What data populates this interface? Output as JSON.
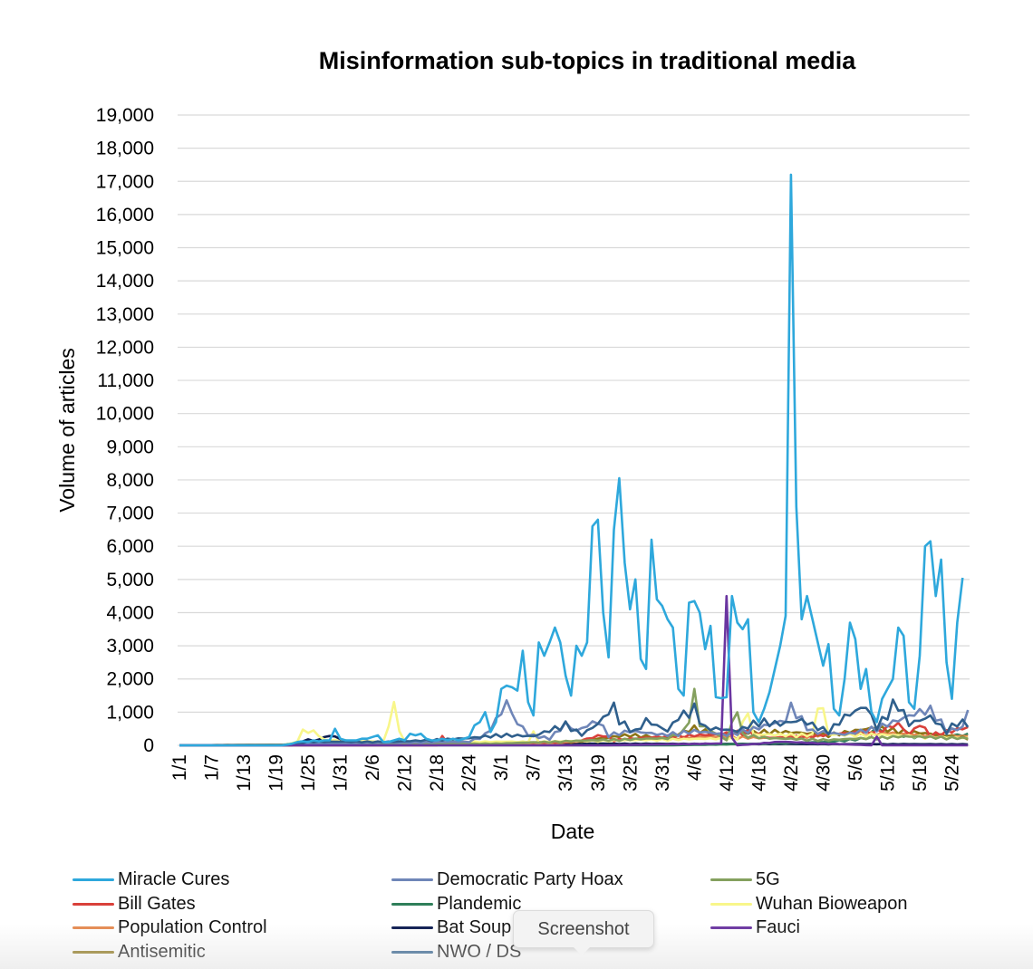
{
  "chart_data": {
    "type": "line",
    "title": "Misinformation sub-topics in traditional media",
    "xlabel": "Date",
    "ylabel": "Volume of articles",
    "ylim": [
      0,
      19000
    ],
    "yticks": [
      "0",
      "1,000",
      "2,000",
      "3,000",
      "4,000",
      "5,000",
      "6,000",
      "7,000",
      "8,000",
      "9,000",
      "10,000",
      "11,000",
      "12,000",
      "13,000",
      "14,000",
      "15,000",
      "16,000",
      "17,000",
      "18,000",
      "19,000"
    ],
    "x_start": "1/1",
    "x_end": "5/27",
    "xticks": [
      "1/1",
      "1/7",
      "1/13",
      "1/19",
      "1/25",
      "1/31",
      "2/6",
      "2/12",
      "2/18",
      "2/24",
      "3/1",
      "3/7",
      "3/13",
      "3/19",
      "3/25",
      "3/31",
      "4/6",
      "4/12",
      "4/18",
      "4/24",
      "4/30",
      "5/6",
      "5/12",
      "5/18",
      "5/24"
    ],
    "grid": true,
    "legend_position": "bottom",
    "series": [
      {
        "name": "Miracle Cures",
        "color": "#2ea8dc",
        "values": [
          0,
          0,
          0,
          0,
          0,
          0,
          0,
          0,
          0,
          0,
          0,
          0,
          0,
          0,
          0,
          0,
          0,
          0,
          0,
          0,
          20,
          50,
          100,
          120,
          100,
          150,
          120,
          150,
          150,
          500,
          200,
          150,
          150,
          150,
          200,
          200,
          250,
          300,
          100,
          100,
          150,
          200,
          150,
          350,
          300,
          350,
          200,
          150,
          150,
          200,
          150,
          200,
          150,
          200,
          250,
          600,
          700,
          1000,
          400,
          700,
          1700,
          1800,
          1750,
          1650,
          2850,
          1300,
          900,
          3100,
          2700,
          3100,
          3550,
          3100,
          2100,
          1500,
          3000,
          2700,
          3100,
          6600,
          6800,
          4000,
          2650,
          6500,
          8050,
          5500,
          4100,
          5000,
          2600,
          2300,
          6200,
          4400,
          4200,
          3800,
          3550,
          1700,
          1500,
          4300,
          4350,
          4000,
          2900,
          3600,
          1450,
          1420,
          1450,
          4500,
          3700,
          3500,
          3800,
          1000,
          700,
          1100,
          1600,
          2300,
          3000,
          3900,
          17200,
          7200,
          3800,
          4500,
          3800,
          3100,
          2400,
          3050,
          1100,
          900,
          2000,
          3700,
          3200,
          1700,
          2300,
          1000,
          700,
          1400,
          1700,
          2000,
          3550,
          3300,
          1300,
          1100,
          2700,
          6000,
          6150,
          4500,
          5600,
          2500,
          1400,
          3700,
          5050
        ]
      },
      {
        "name": "Democratic Party Hoax",
        "color": "#6f86b8",
        "points": [
          [
            "1/1",
            0
          ],
          [
            "1/20",
            0
          ],
          [
            "1/25",
            50
          ],
          [
            "2/24",
            100
          ],
          [
            "2/27",
            300
          ],
          [
            "2/29",
            700
          ],
          [
            "3/2",
            1200
          ],
          [
            "3/4",
            600
          ],
          [
            "3/5",
            500
          ],
          [
            "3/6",
            300
          ],
          [
            "3/10",
            200
          ],
          [
            "3/13",
            600
          ],
          [
            "3/15",
            400
          ],
          [
            "3/19",
            700
          ],
          [
            "3/21",
            300
          ],
          [
            "3/25",
            400
          ],
          [
            "3/31",
            300
          ],
          [
            "4/6",
            400
          ],
          [
            "4/12",
            300
          ],
          [
            "4/18",
            500
          ],
          [
            "4/23",
            700
          ],
          [
            "4/24",
            1100
          ],
          [
            "4/25",
            900
          ],
          [
            "4/28",
            400
          ],
          [
            "5/4",
            300
          ],
          [
            "5/10",
            500
          ],
          [
            "5/14",
            700
          ],
          [
            "5/19",
            1000
          ],
          [
            "5/20",
            1000
          ],
          [
            "5/21",
            900
          ],
          [
            "5/23",
            400
          ],
          [
            "5/26",
            500
          ],
          [
            "5/27",
            1000
          ]
        ]
      },
      {
        "name": "5G",
        "color": "#84a05e",
        "points": [
          [
            "1/1",
            0
          ],
          [
            "3/1",
            50
          ],
          [
            "3/20",
            150
          ],
          [
            "4/1",
            200
          ],
          [
            "4/4",
            400
          ],
          [
            "4/5",
            800
          ],
          [
            "4/6",
            1700
          ],
          [
            "4/7",
            600
          ],
          [
            "4/8",
            500
          ],
          [
            "4/12",
            150
          ],
          [
            "4/13",
            600
          ],
          [
            "4/14",
            1100
          ],
          [
            "4/15",
            300
          ],
          [
            "4/20",
            200
          ],
          [
            "5/1",
            150
          ],
          [
            "5/15",
            250
          ],
          [
            "5/27",
            200
          ]
        ]
      },
      {
        "name": "Bill Gates",
        "color": "#d9403a",
        "points": [
          [
            "1/1",
            0
          ],
          [
            "2/18",
            0
          ],
          [
            "2/19",
            250
          ],
          [
            "2/20",
            50
          ],
          [
            "3/15",
            100
          ],
          [
            "3/20",
            300
          ],
          [
            "3/22",
            150
          ],
          [
            "4/1",
            250
          ],
          [
            "4/10",
            300
          ],
          [
            "4/16",
            400
          ],
          [
            "4/20",
            200
          ],
          [
            "5/1",
            300
          ],
          [
            "5/10",
            400
          ],
          [
            "5/14",
            600
          ],
          [
            "5/16",
            300
          ],
          [
            "5/18",
            600
          ],
          [
            "5/20",
            300
          ],
          [
            "5/27",
            500
          ]
        ]
      },
      {
        "name": "Plandemic",
        "color": "#2f7f5a",
        "points": [
          [
            "1/1",
            0
          ],
          [
            "4/1",
            0
          ],
          [
            "4/20",
            50
          ],
          [
            "5/1",
            100
          ],
          [
            "5/8",
            200
          ],
          [
            "5/10",
            500
          ],
          [
            "5/12",
            300
          ],
          [
            "5/20",
            250
          ],
          [
            "5/27",
            300
          ]
        ]
      },
      {
        "name": "Wuhan Bioweapon",
        "color": "#f8f68a",
        "points": [
          [
            "1/1",
            0
          ],
          [
            "1/20",
            0
          ],
          [
            "1/23",
            100
          ],
          [
            "1/24",
            450
          ],
          [
            "1/25",
            350
          ],
          [
            "1/26",
            400
          ],
          [
            "1/28",
            150
          ],
          [
            "2/8",
            100
          ],
          [
            "2/9",
            600
          ],
          [
            "2/10",
            1100
          ],
          [
            "2/11",
            500
          ],
          [
            "2/12",
            100
          ],
          [
            "3/6",
            100
          ],
          [
            "3/7",
            350
          ],
          [
            "3/8",
            100
          ],
          [
            "4/14",
            200
          ],
          [
            "4/16",
            1000
          ],
          [
            "4/17",
            300
          ],
          [
            "4/28",
            300
          ],
          [
            "4/29",
            1100
          ],
          [
            "4/30",
            1000
          ],
          [
            "5/1",
            300
          ],
          [
            "5/10",
            300
          ],
          [
            "5/27",
            200
          ]
        ]
      },
      {
        "name": "Population Control",
        "color": "#e58a50",
        "points": [
          [
            "1/1",
            0
          ],
          [
            "3/10",
            50
          ],
          [
            "3/20",
            150
          ],
          [
            "4/1",
            200
          ],
          [
            "4/10",
            250
          ],
          [
            "4/20",
            200
          ],
          [
            "5/1",
            300
          ],
          [
            "5/12",
            350
          ],
          [
            "5/27",
            250
          ]
        ]
      },
      {
        "name": "Bat Soup",
        "color": "#0b1b4f",
        "points": [
          [
            "1/1",
            0
          ],
          [
            "1/22",
            0
          ],
          [
            "1/24",
            150
          ],
          [
            "1/27",
            150
          ],
          [
            "1/28",
            250
          ],
          [
            "1/30",
            250
          ],
          [
            "2/1",
            100
          ],
          [
            "2/10",
            50
          ],
          [
            "3/1",
            50
          ],
          [
            "5/27",
            30
          ]
        ]
      },
      {
        "name": "Fauci",
        "color": "#6a35a0",
        "points": [
          [
            "1/1",
            0
          ],
          [
            "3/20",
            0
          ],
          [
            "4/11",
            50
          ],
          [
            "4/12",
            4500
          ],
          [
            "4/13",
            200
          ],
          [
            "4/14",
            0
          ],
          [
            "4/22",
            100
          ],
          [
            "5/9",
            0
          ],
          [
            "5/10",
            300
          ],
          [
            "5/11",
            0
          ],
          [
            "5/27",
            0
          ]
        ]
      },
      {
        "name": "Antisemitic",
        "color": "#8c7416",
        "points": [
          [
            "1/1",
            0
          ],
          [
            "2/20",
            50
          ],
          [
            "3/15",
            100
          ],
          [
            "3/25",
            300
          ],
          [
            "4/1",
            200
          ],
          [
            "4/6",
            500
          ],
          [
            "4/10",
            300
          ],
          [
            "4/20",
            400
          ],
          [
            "5/1",
            300
          ],
          [
            "5/10",
            500
          ],
          [
            "5/15",
            400
          ],
          [
            "5/27",
            200
          ]
        ]
      },
      {
        "name": "NWO / DS",
        "color": "#2f5f8c",
        "points": [
          [
            "1/1",
            0
          ],
          [
            "1/20",
            0
          ],
          [
            "1/25",
            100
          ],
          [
            "2/10",
            100
          ],
          [
            "2/24",
            200
          ],
          [
            "3/1",
            300
          ],
          [
            "3/7",
            250
          ],
          [
            "3/13",
            600
          ],
          [
            "3/16",
            300
          ],
          [
            "3/19",
            600
          ],
          [
            "3/22",
            1100
          ],
          [
            "3/23",
            700
          ],
          [
            "3/26",
            400
          ],
          [
            "3/28",
            700
          ],
          [
            "4/1",
            400
          ],
          [
            "4/3",
            800
          ],
          [
            "4/6",
            1050
          ],
          [
            "4/8",
            500
          ],
          [
            "4/14",
            400
          ],
          [
            "4/18",
            700
          ],
          [
            "4/22",
            600
          ],
          [
            "4/26",
            700
          ],
          [
            "5/1",
            400
          ],
          [
            "5/4",
            800
          ],
          [
            "5/8",
            1100
          ],
          [
            "5/10",
            500
          ],
          [
            "5/13",
            1150
          ],
          [
            "5/14",
            1200
          ],
          [
            "5/16",
            600
          ],
          [
            "5/20",
            800
          ],
          [
            "5/23",
            400
          ],
          [
            "5/25",
            700
          ],
          [
            "5/27",
            600
          ]
        ]
      }
    ]
  },
  "overlay": {
    "tooltip": "Screenshot"
  }
}
